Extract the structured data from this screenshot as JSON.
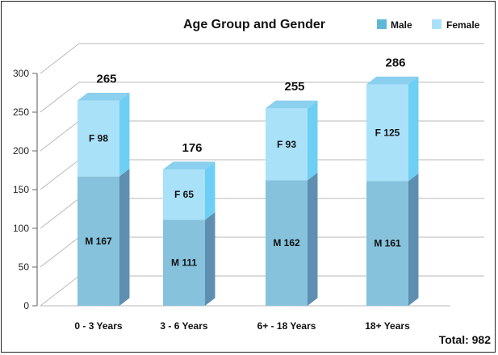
{
  "chart_data": {
    "type": "bar",
    "stacked": true,
    "title": "Age Group and Gender",
    "categories": [
      "0 - 3 Years",
      "3 - 6 Years",
      "6+ - 18 Years",
      "18+ Years"
    ],
    "series": [
      {
        "name": "Male",
        "values": [
          167,
          111,
          162,
          161
        ],
        "labels": [
          "M 167",
          "M 111",
          "M 162",
          "M 161"
        ]
      },
      {
        "name": "Female",
        "values": [
          98,
          65,
          93,
          125
        ],
        "labels": [
          "F 98",
          "F 65",
          "F 93",
          "F 125"
        ]
      }
    ],
    "totals": [
      "265",
      "176",
      "255",
      "286"
    ],
    "yticks": [
      "0",
      "50",
      "100",
      "150",
      "200",
      "250",
      "300"
    ],
    "ylim": [
      0,
      300
    ],
    "grid": true,
    "legend_position": "top-right",
    "grand_total": "Total: 982",
    "colors": {
      "male_front": "#86c2dc",
      "male_side": "#5f8fb0",
      "male_top": "#79b4cf",
      "female_front": "#a9e1f9",
      "female_side": "#6ecff4",
      "female_top": "#8bd0ee",
      "legend_male": "#5fb9d6",
      "legend_female": "#a9e1f9"
    }
  }
}
